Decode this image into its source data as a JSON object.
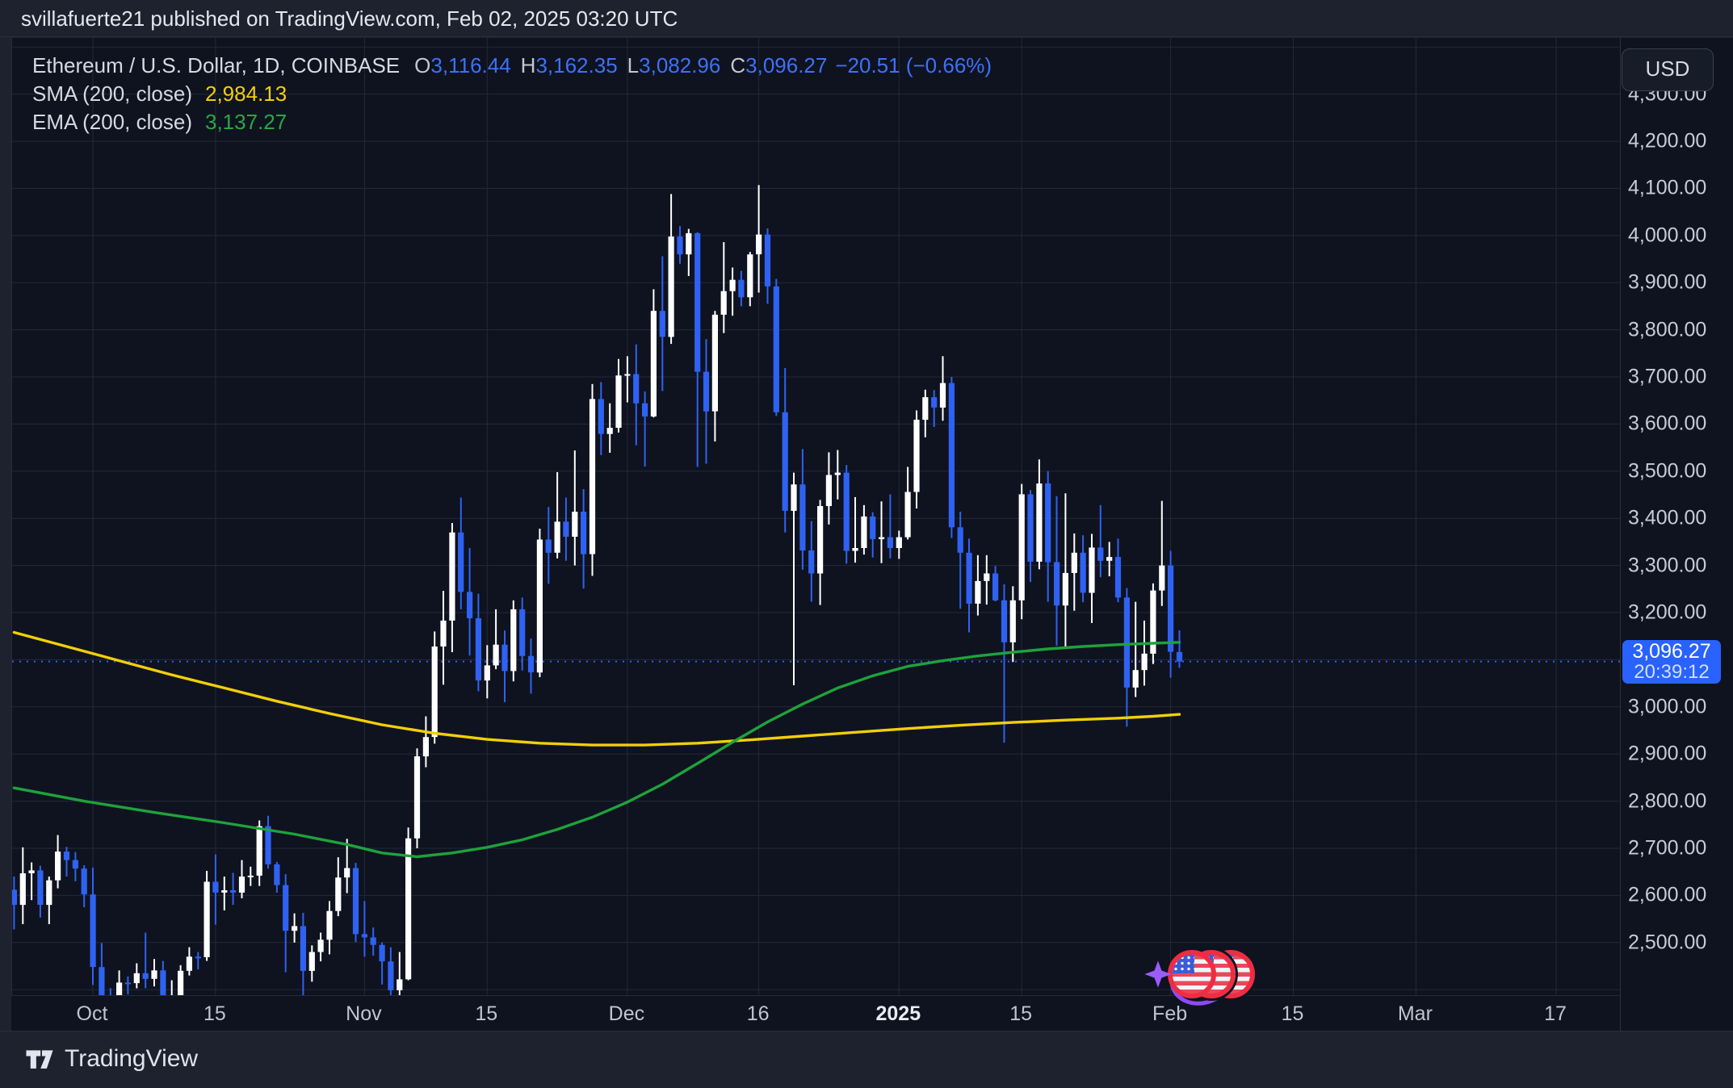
{
  "topbar": {
    "text": "svillafuerte21 published on TradingView.com, Feb 02, 2025 03:20 UTC"
  },
  "legend": {
    "symbol": "Ethereum / U.S. Dollar, 1D, COINBASE",
    "ohlc": {
      "o_label": "O",
      "o": "3,116.44",
      "h_label": "H",
      "h": "3,162.35",
      "l_label": "L",
      "l": "3,082.96",
      "c_label": "C",
      "c": "3,096.27",
      "change": "−20.51 (−0.66%)"
    },
    "sma": {
      "label": "SMA (200, close)",
      "value": "2,984.13"
    },
    "ema": {
      "label": "EMA (200, close)",
      "value": "3,137.27"
    }
  },
  "price_axis": {
    "currency": "USD",
    "labels": [
      {
        "value": 4300,
        "text": "4,300.00"
      },
      {
        "value": 4200,
        "text": "4,200.00"
      },
      {
        "value": 4100,
        "text": "4,100.00"
      },
      {
        "value": 4000,
        "text": "4,000.00"
      },
      {
        "value": 3900,
        "text": "3,900.00"
      },
      {
        "value": 3800,
        "text": "3,800.00"
      },
      {
        "value": 3700,
        "text": "3,700.00"
      },
      {
        "value": 3600,
        "text": "3,600.00"
      },
      {
        "value": 3500,
        "text": "3,500.00"
      },
      {
        "value": 3400,
        "text": "3,400.00"
      },
      {
        "value": 3300,
        "text": "3,300.00"
      },
      {
        "value": 3200,
        "text": "3,200.00"
      },
      {
        "value": 3000,
        "text": "3,000.00"
      },
      {
        "value": 2900,
        "text": "2,900.00"
      },
      {
        "value": 2800,
        "text": "2,800.00"
      },
      {
        "value": 2700,
        "text": "2,700.00"
      },
      {
        "value": 2600,
        "text": "2,600.00"
      },
      {
        "value": 2500,
        "text": "2,500.00"
      }
    ],
    "last": {
      "price": "3,096.27",
      "countdown": "20:39:12"
    }
  },
  "time_axis": {
    "ticks": [
      {
        "label": "Oct",
        "day": 9,
        "bold": false
      },
      {
        "label": "15",
        "day": 23,
        "bold": false
      },
      {
        "label": "Nov",
        "day": 40,
        "bold": false
      },
      {
        "label": "15",
        "day": 54,
        "bold": false
      },
      {
        "label": "Dec",
        "day": 70,
        "bold": false
      },
      {
        "label": "16",
        "day": 85,
        "bold": false
      },
      {
        "label": "2025",
        "day": 101,
        "bold": true
      },
      {
        "label": "15",
        "day": 115,
        "bold": false
      },
      {
        "label": "Feb",
        "day": 132,
        "bold": false
      },
      {
        "label": "15",
        "day": 146,
        "bold": false
      },
      {
        "label": "Mar",
        "day": 160,
        "bold": false
      },
      {
        "label": "17",
        "day": 176,
        "bold": false
      }
    ]
  },
  "footer": {
    "brand": "TradingView"
  },
  "sticker": {
    "name": "us-flag-circles-with-sparkle",
    "flag_count": 3
  },
  "colors": {
    "up_candle": "#ffffff",
    "down_candle": "#2f62f2",
    "sma_line": "#f2cf08",
    "ema_line": "#1ea23c",
    "last_price": "#2962ff",
    "grid": "#232939",
    "plot_bg": "#0f131f",
    "outer_bg": "#1d222e",
    "axis_text": "#c7cbd5"
  },
  "chart_data": {
    "type": "candlestick",
    "title": "Ethereum / U.S. Dollar, 1D, COINBASE",
    "symbol": "ETH/USD",
    "exchange": "COINBASE",
    "interval": "1D",
    "unit": "USD",
    "start_date": "2024-09-22",
    "last_price": 3096.27,
    "y_axis": {
      "visible_min": 2392,
      "visible_max": 4405,
      "tick_step": 100,
      "grid": true
    },
    "legend_position": "top-left",
    "candles_ohlc": [
      [
        2612,
        2640,
        2528,
        2580
      ],
      [
        2580,
        2702,
        2539,
        2647
      ],
      [
        2647,
        2670,
        2590,
        2653
      ],
      [
        2653,
        2663,
        2553,
        2580
      ],
      [
        2580,
        2640,
        2539,
        2632
      ],
      [
        2632,
        2728,
        2615,
        2693
      ],
      [
        2693,
        2703,
        2640,
        2675
      ],
      [
        2675,
        2692,
        2630,
        2657
      ],
      [
        2657,
        2664,
        2575,
        2602
      ],
      [
        2602,
        2659,
        2410,
        2448
      ],
      [
        2448,
        2499,
        2352,
        2364
      ],
      [
        2364,
        2403,
        2310,
        2349
      ],
      [
        2349,
        2441,
        2339,
        2415
      ],
      [
        2415,
        2428,
        2390,
        2414
      ],
      [
        2414,
        2456,
        2403,
        2435
      ],
      [
        2435,
        2521,
        2403,
        2423
      ],
      [
        2423,
        2465,
        2407,
        2441
      ],
      [
        2441,
        2461,
        2331,
        2371
      ],
      [
        2371,
        2420,
        2335,
        2387
      ],
      [
        2387,
        2452,
        2372,
        2440
      ],
      [
        2440,
        2490,
        2430,
        2470
      ],
      [
        2470,
        2480,
        2443,
        2469
      ],
      [
        2469,
        2652,
        2461,
        2629
      ],
      [
        2629,
        2687,
        2538,
        2606
      ],
      [
        2606,
        2640,
        2568,
        2611
      ],
      [
        2611,
        2648,
        2580,
        2606
      ],
      [
        2606,
        2675,
        2594,
        2640
      ],
      [
        2640,
        2661,
        2620,
        2642
      ],
      [
        2642,
        2759,
        2620,
        2747
      ],
      [
        2747,
        2769,
        2657,
        2666
      ],
      [
        2666,
        2671,
        2606,
        2622
      ],
      [
        2622,
        2645,
        2437,
        2525
      ],
      [
        2525,
        2562,
        2500,
        2535
      ],
      [
        2535,
        2563,
        2383,
        2440
      ],
      [
        2440,
        2494,
        2417,
        2480
      ],
      [
        2480,
        2521,
        2460,
        2506
      ],
      [
        2506,
        2588,
        2475,
        2567
      ],
      [
        2567,
        2681,
        2556,
        2638
      ],
      [
        2638,
        2720,
        2605,
        2658
      ],
      [
        2658,
        2669,
        2501,
        2518
      ],
      [
        2518,
        2588,
        2470,
        2511
      ],
      [
        2511,
        2532,
        2472,
        2495
      ],
      [
        2495,
        2500,
        2411,
        2460
      ],
      [
        2460,
        2490,
        2357,
        2399
      ],
      [
        2399,
        2480,
        2380,
        2422
      ],
      [
        2422,
        2744,
        2420,
        2721
      ],
      [
        2721,
        2912,
        2700,
        2895
      ],
      [
        2895,
        2980,
        2872,
        2936
      ],
      [
        2936,
        3160,
        2922,
        3128
      ],
      [
        3128,
        3246,
        3047,
        3183
      ],
      [
        3183,
        3390,
        3116,
        3370
      ],
      [
        3370,
        3444,
        3207,
        3244
      ],
      [
        3244,
        3337,
        3109,
        3188
      ],
      [
        3188,
        3240,
        3033,
        3056
      ],
      [
        3056,
        3131,
        3018,
        3088
      ],
      [
        3088,
        3207,
        3080,
        3132
      ],
      [
        3132,
        3162,
        3010,
        3076
      ],
      [
        3076,
        3226,
        3054,
        3207
      ],
      [
        3207,
        3232,
        3077,
        3108
      ],
      [
        3108,
        3145,
        3028,
        3073
      ],
      [
        3073,
        3378,
        3063,
        3355
      ],
      [
        3355,
        3424,
        3261,
        3327
      ],
      [
        3327,
        3498,
        3315,
        3393
      ],
      [
        3393,
        3444,
        3310,
        3361
      ],
      [
        3361,
        3544,
        3300,
        3414
      ],
      [
        3414,
        3462,
        3251,
        3324
      ],
      [
        3324,
        3685,
        3278,
        3653
      ],
      [
        3653,
        3689,
        3534,
        3579
      ],
      [
        3579,
        3644,
        3539,
        3592
      ],
      [
        3592,
        3738,
        3582,
        3703
      ],
      [
        3703,
        3744,
        3646,
        3706
      ],
      [
        3706,
        3769,
        3555,
        3644
      ],
      [
        3644,
        3669,
        3510,
        3616
      ],
      [
        3616,
        3886,
        3614,
        3840
      ],
      [
        3840,
        3956,
        3670,
        3785
      ],
      [
        3785,
        4088,
        3770,
        3998
      ],
      [
        3998,
        4020,
        3940,
        3960
      ],
      [
        3960,
        4014,
        3914,
        4005
      ],
      [
        4005,
        4007,
        3509,
        3711
      ],
      [
        3711,
        3780,
        3516,
        3627
      ],
      [
        3627,
        3840,
        3563,
        3832
      ],
      [
        3832,
        3986,
        3793,
        3882
      ],
      [
        3882,
        3932,
        3830,
        3906
      ],
      [
        3906,
        3925,
        3850,
        3869
      ],
      [
        3869,
        3965,
        3850,
        3960
      ],
      [
        3960,
        4107,
        3879,
        4002
      ],
      [
        4002,
        4015,
        3855,
        3892
      ],
      [
        3892,
        3908,
        3617,
        3625
      ],
      [
        3625,
        3719,
        3370,
        3416
      ],
      [
        3416,
        3497,
        3046,
        3472
      ],
      [
        3472,
        3547,
        3291,
        3332
      ],
      [
        3332,
        3394,
        3223,
        3283
      ],
      [
        3283,
        3439,
        3216,
        3426
      ],
      [
        3426,
        3540,
        3387,
        3492
      ],
      [
        3492,
        3545,
        3440,
        3497
      ],
      [
        3497,
        3513,
        3304,
        3331
      ],
      [
        3331,
        3445,
        3306,
        3337
      ],
      [
        3337,
        3428,
        3323,
        3404
      ],
      [
        3404,
        3413,
        3317,
        3356
      ],
      [
        3356,
        3436,
        3305,
        3360
      ],
      [
        3360,
        3451,
        3315,
        3337
      ],
      [
        3337,
        3374,
        3314,
        3360
      ],
      [
        3360,
        3509,
        3355,
        3456
      ],
      [
        3456,
        3629,
        3421,
        3609
      ],
      [
        3609,
        3673,
        3572,
        3657
      ],
      [
        3657,
        3672,
        3594,
        3635
      ],
      [
        3635,
        3744,
        3607,
        3687
      ],
      [
        3687,
        3700,
        3358,
        3381
      ],
      [
        3381,
        3414,
        3208,
        3327
      ],
      [
        3327,
        3357,
        3158,
        3219
      ],
      [
        3219,
        3322,
        3194,
        3267
      ],
      [
        3267,
        3322,
        3217,
        3283
      ],
      [
        3283,
        3299,
        3224,
        3226
      ],
      [
        3226,
        3260,
        2924,
        3137
      ],
      [
        3137,
        3256,
        3095,
        3226
      ],
      [
        3226,
        3473,
        3186,
        3451
      ],
      [
        3451,
        3460,
        3265,
        3308
      ],
      [
        3308,
        3525,
        3292,
        3474
      ],
      [
        3474,
        3500,
        3223,
        3307
      ],
      [
        3307,
        3447,
        3130,
        3215
      ],
      [
        3215,
        3453,
        3126,
        3284
      ],
      [
        3284,
        3368,
        3204,
        3327
      ],
      [
        3327,
        3364,
        3222,
        3242
      ],
      [
        3242,
        3367,
        3178,
        3338
      ],
      [
        3338,
        3428,
        3275,
        3310
      ],
      [
        3310,
        3350,
        3277,
        3318
      ],
      [
        3318,
        3357,
        3222,
        3232
      ],
      [
        3232,
        3252,
        2958,
        3041
      ],
      [
        3041,
        3223,
        3021,
        3078
      ],
      [
        3078,
        3183,
        3045,
        3113
      ],
      [
        3113,
        3262,
        3091,
        3247
      ],
      [
        3247,
        3437,
        3214,
        3300
      ],
      [
        3300,
        3331,
        3062,
        3117
      ],
      [
        3116.44,
        3162.35,
        3082.96,
        3096.27
      ]
    ],
    "overlays": [
      {
        "name": "SMA (200, close)",
        "value": 2984.13,
        "color": "#f2cf08",
        "points": [
          [
            0,
            3158
          ],
          [
            6,
            3128
          ],
          [
            12,
            3098
          ],
          [
            18,
            3068
          ],
          [
            24,
            3040
          ],
          [
            30,
            3012
          ],
          [
            36,
            2986
          ],
          [
            42,
            2962
          ],
          [
            48,
            2944
          ],
          [
            54,
            2931
          ],
          [
            60,
            2923
          ],
          [
            66,
            2919
          ],
          [
            72,
            2919
          ],
          [
            78,
            2923
          ],
          [
            84,
            2930
          ],
          [
            90,
            2938
          ],
          [
            96,
            2946
          ],
          [
            102,
            2954
          ],
          [
            108,
            2961
          ],
          [
            114,
            2967
          ],
          [
            120,
            2972
          ],
          [
            126,
            2976
          ],
          [
            130,
            2980
          ],
          [
            133,
            2984
          ]
        ]
      },
      {
        "name": "EMA (200, close)",
        "value": 3137.27,
        "color": "#1ea23c",
        "points": [
          [
            0,
            2828
          ],
          [
            8,
            2800
          ],
          [
            16,
            2776
          ],
          [
            24,
            2754
          ],
          [
            32,
            2730
          ],
          [
            38,
            2708
          ],
          [
            42,
            2690
          ],
          [
            46,
            2682
          ],
          [
            50,
            2690
          ],
          [
            54,
            2702
          ],
          [
            58,
            2718
          ],
          [
            62,
            2740
          ],
          [
            66,
            2766
          ],
          [
            70,
            2798
          ],
          [
            74,
            2836
          ],
          [
            78,
            2880
          ],
          [
            82,
            2925
          ],
          [
            86,
            2968
          ],
          [
            90,
            3006
          ],
          [
            94,
            3040
          ],
          [
            98,
            3066
          ],
          [
            102,
            3086
          ],
          [
            106,
            3098
          ],
          [
            110,
            3108
          ],
          [
            114,
            3116
          ],
          [
            118,
            3123
          ],
          [
            122,
            3128
          ],
          [
            126,
            3132
          ],
          [
            130,
            3135
          ],
          [
            133,
            3137
          ]
        ]
      }
    ]
  }
}
